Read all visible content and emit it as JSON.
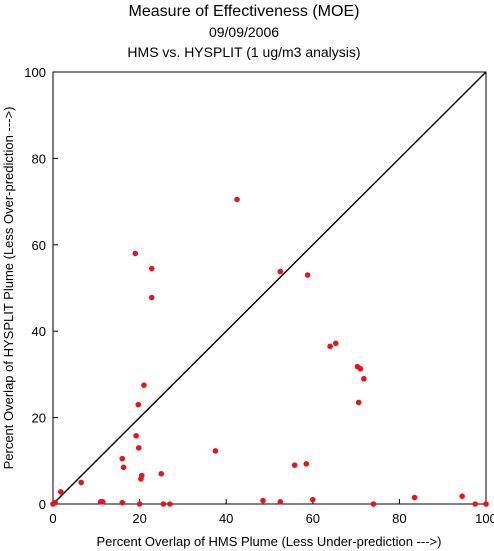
{
  "chart_data": {
    "type": "scatter",
    "title": "Measure of Effectiveness (MOE)",
    "subtitle_date": "09/09/2006",
    "subtitle_analysis": "HMS vs. HYSPLIT  (1 ug/m3 analysis)",
    "xlabel": "Percent Overlap of HMS Plume (Less Under-prediction --->)",
    "ylabel": "Percent Overlap of HYSPLIT Plume (Less Over-prediction --->)",
    "xlim": [
      0,
      100
    ],
    "ylim": [
      0,
      100
    ],
    "xticks": [
      0,
      20,
      40,
      60,
      80,
      100
    ],
    "yticks": [
      0,
      20,
      40,
      60,
      80,
      100
    ],
    "reference_line": "y = x",
    "grid": false,
    "point_color": "#e8141c",
    "series": [
      {
        "points": [
          [
            0,
            0
          ],
          [
            0.5,
            0.3
          ],
          [
            1.8,
            2.8
          ],
          [
            6.5,
            5
          ],
          [
            11,
            0.5
          ],
          [
            11.5,
            0.5
          ],
          [
            16,
            0.3
          ],
          [
            16,
            10.5
          ],
          [
            16.3,
            8.5
          ],
          [
            19,
            58
          ],
          [
            19.2,
            15.8
          ],
          [
            19.7,
            23
          ],
          [
            19.8,
            13
          ],
          [
            20,
            0
          ],
          [
            20.3,
            5.8
          ],
          [
            20.5,
            6.6
          ],
          [
            21,
            27.5
          ],
          [
            22.8,
            54.5
          ],
          [
            22.8,
            47.8
          ],
          [
            25,
            7
          ],
          [
            25.5,
            0
          ],
          [
            27,
            0
          ],
          [
            37.5,
            12.3
          ],
          [
            42.5,
            70.5
          ],
          [
            48.5,
            0.8
          ],
          [
            52.5,
            0.5
          ],
          [
            52.5,
            53.8
          ],
          [
            55.8,
            9
          ],
          [
            58.5,
            9.3
          ],
          [
            58.8,
            53
          ],
          [
            60,
            1
          ],
          [
            64,
            36.5
          ],
          [
            65.3,
            37.2
          ],
          [
            70.3,
            31.8
          ],
          [
            70.6,
            23.5
          ],
          [
            71,
            31.3
          ],
          [
            71.8,
            29
          ],
          [
            74,
            0
          ],
          [
            83.5,
            1.5
          ],
          [
            94.5,
            1.8
          ],
          [
            97.5,
            0
          ],
          [
            100,
            0
          ]
        ]
      }
    ]
  }
}
